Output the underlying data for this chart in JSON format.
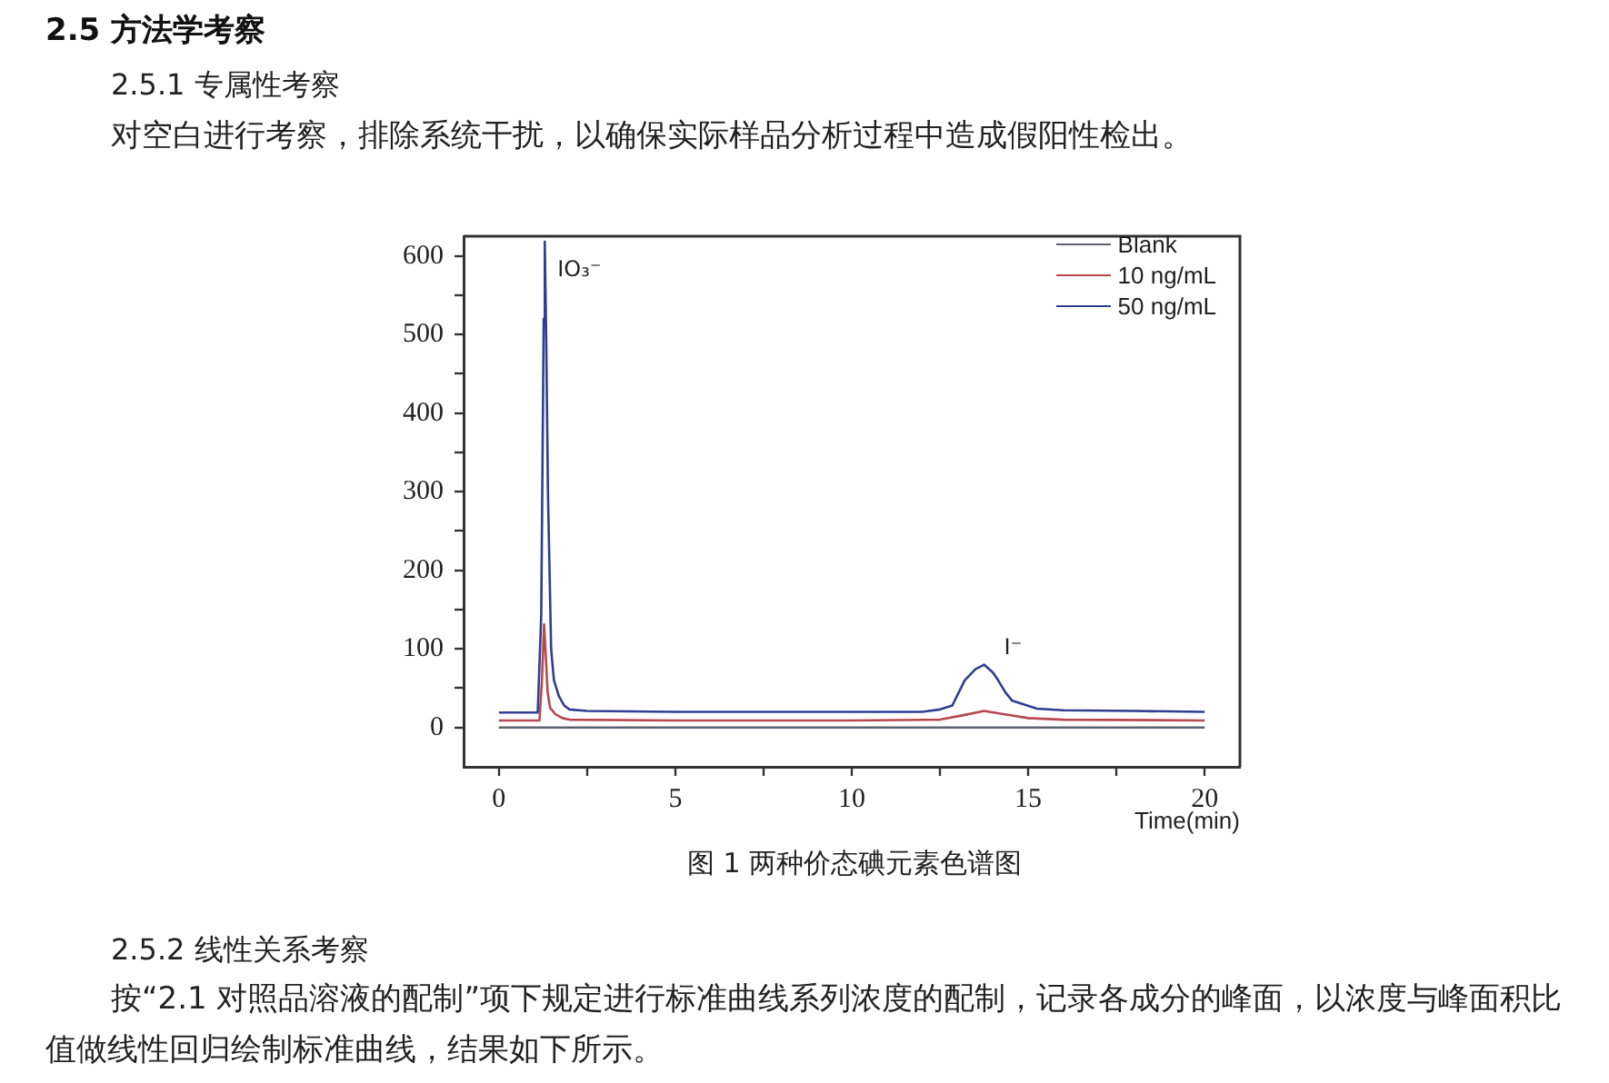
{
  "chart_data": {
    "type": "line",
    "title": "2.5 方法学考察",
    "subtitle": "2.5.1 专属性考察",
    "xlabel": "Time(min)",
    "annotations": [
      "对空白进行考察，排除系统干扰，以确保实际样品分析过程中造成假阳性检出。",
      {
        "text": "IO₃⁻",
        "x": 1.3,
        "y": 618
      },
      {
        "text": "I⁻",
        "x": 13.75,
        "y": 80
      },
      "图 1 两种价态碘元素色谱图",
      "2.5.2 线性关系考察",
      "按“2.1 对照品溶液的配制”项下规定进行标准曲线系列浓度的配制，记录各成分的峰面，以浓度与峰面积比值做线性回归绘制标准曲线，结果如下所示。"
    ],
    "series": [
      {
        "name": "Blank",
        "color": "#5c6170",
        "x": [
          0,
          20
        ],
        "values": [
          0,
          0
        ]
      },
      {
        "name": "10 ng/mL",
        "color": "#b8474f",
        "x": [
          0,
          1.15,
          1.22,
          1.28,
          1.32,
          1.38,
          1.45,
          1.6,
          1.8,
          2,
          5,
          10,
          12.5,
          13.2,
          13.75,
          14.3,
          15,
          16,
          20
        ],
        "values": [
          9,
          9,
          60,
          131,
          100,
          45,
          25,
          17,
          12,
          10,
          9,
          9,
          10,
          16,
          21,
          17,
          12,
          10,
          9
        ]
      },
      {
        "name": "50 ng/mL",
        "color": "#2f3e8f",
        "x": [
          0,
          1.1,
          1.2,
          1.27,
          1.3,
          1.34,
          1.39,
          1.48,
          1.56,
          1.7,
          1.85,
          2,
          2.5,
          5,
          10,
          12,
          12.5,
          12.85,
          13.2,
          13.5,
          13.75,
          14,
          14.15,
          14.35,
          14.55,
          15.25,
          16,
          18,
          20
        ],
        "values": [
          19,
          19,
          143,
          520,
          618,
          500,
          300,
          100,
          60,
          40,
          28,
          23,
          21,
          20,
          20,
          20,
          23,
          28,
          60,
          74,
          80,
          70,
          60,
          45,
          34,
          24,
          22,
          21,
          20
        ]
      }
    ],
    "xlim": [
      -1,
      21
    ],
    "xticks": [
      0,
      {
        "value": 2.5,
        "label": null
      },
      5,
      {
        "value": 7.5,
        "label": null
      },
      10,
      {
        "value": 12.5,
        "label": null
      },
      15,
      {
        "value": 17.5,
        "label": null
      },
      20
    ],
    "ylim": [
      -50,
      625
    ],
    "yticks": [
      0,
      {
        "value": 50,
        "label": null
      },
      100,
      {
        "value": 150,
        "label": null
      },
      200,
      {
        "value": 250,
        "label": null
      },
      300,
      {
        "value": 350,
        "label": null
      },
      400,
      {
        "value": 450,
        "label": null
      },
      500,
      {
        "value": 550,
        "label": null
      },
      600
    ],
    "grid": false,
    "legend": "top right",
    "marker": "none",
    "line_style": "solid"
  }
}
